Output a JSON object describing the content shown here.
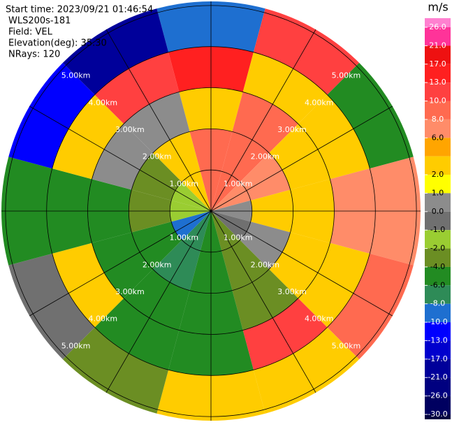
{
  "chart_data": {
    "type": "ppi",
    "info": [
      "Start time: 2023/09/21 01:46:54",
      "WLS200s-181",
      "Field: VEL",
      "Elevation(deg): 35.30",
      "NRays: 120"
    ],
    "unit": "m/s",
    "rlim": [
      0,
      5.1
    ],
    "range_bins": [
      0,
      1,
      2,
      3,
      4,
      5.1
    ],
    "azimuths": [
      0,
      30,
      60,
      90,
      120,
      150,
      180,
      210,
      240,
      270,
      300,
      330
    ],
    "sector_width": 30,
    "values": [
      [
        9,
        9,
        5,
        15,
        -10
      ],
      [
        9,
        9,
        8,
        3,
        12
      ],
      [
        7,
        6,
        3,
        2,
        -5
      ],
      [
        0.5,
        2,
        3,
        6,
        7
      ],
      [
        -0.5,
        0.5,
        3,
        2,
        8
      ],
      [
        -3,
        -3,
        -3,
        10,
        4
      ],
      [
        -5,
        -5,
        -5,
        -6,
        5
      ],
      [
        -7,
        -7,
        -5,
        -6,
        -3
      ],
      [
        -9,
        -6,
        -6,
        3,
        -1
      ],
      [
        -1.5,
        -3,
        -5,
        -5,
        -5
      ],
      [
        -1.5,
        -3,
        0.5,
        3,
        -12
      ],
      [
        3,
        2,
        0.5,
        12,
        -20
      ]
    ],
    "rings": [
      {
        "value": 1,
        "label": "1.00km"
      },
      {
        "value": 2,
        "label": "2.00km"
      },
      {
        "value": 3,
        "label": "3.00km"
      },
      {
        "value": 4,
        "label": "4.00km"
      },
      {
        "value": 5,
        "label": "5.00km"
      }
    ],
    "cticks": [
      {
        "value": 26,
        "label": "26.0"
      },
      {
        "value": 21,
        "label": "21.0"
      },
      {
        "value": 17,
        "label": "17.0"
      },
      {
        "value": 13,
        "label": "13.0"
      },
      {
        "value": 10,
        "label": "10.0"
      },
      {
        "value": 8,
        "label": "8.0"
      },
      {
        "value": 6,
        "label": "6.0"
      },
      null,
      {
        "value": 2,
        "label": "2.0"
      },
      {
        "value": 1,
        "label": "1.0"
      },
      {
        "value": 0,
        "label": "0.0"
      },
      {
        "value": -1,
        "label": "-1.0"
      },
      {
        "value": -2,
        "label": "-2.0"
      },
      {
        "value": -4,
        "label": "-4.0"
      },
      {
        "value": -6,
        "label": "-6.0"
      },
      {
        "value": -8,
        "label": "-8.0"
      },
      {
        "value": -10,
        "label": "-10.0"
      },
      {
        "value": -13,
        "label": "-13.0"
      },
      {
        "value": -17,
        "label": "-17.0"
      },
      {
        "value": -21,
        "label": "-21.0"
      },
      {
        "value": -26,
        "label": "-26.0"
      },
      {
        "value": -30,
        "label": "-30.0"
      }
    ],
    "colors": [
      "#ff80d0",
      "#ff3399",
      "#ee1111",
      "#ff2020",
      "#ff4040",
      "#ff6a50",
      "#ff8c69",
      "#ffa500",
      "#ffcc00",
      "#ffff00",
      "#8c8c8c",
      "#707070",
      "#9acd32",
      "#6b8e23",
      "#228b22",
      "#2e8b57",
      "#1e6fd0",
      "#0000ff",
      "#0000cd",
      "#00009a",
      "#000080",
      "#000060",
      "#000040"
    ]
  }
}
